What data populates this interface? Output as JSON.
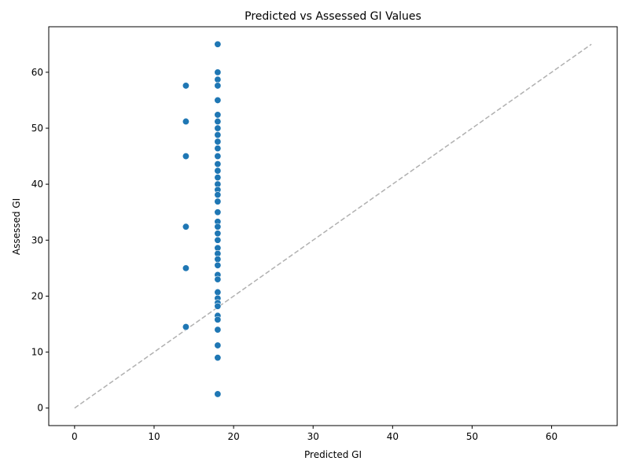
{
  "chart_data": {
    "type": "scatter",
    "title": "Predicted vs Assessed GI Values",
    "xlabel": "Predicted GI",
    "ylabel": "Assessed GI",
    "xlim": [
      -3.25,
      68.25
    ],
    "ylim": [
      -3.13,
      68.13
    ],
    "x_ticks": [
      0,
      10,
      20,
      30,
      40,
      50,
      60
    ],
    "y_ticks": [
      0,
      10,
      20,
      30,
      40,
      50,
      60
    ],
    "grid": false,
    "point_color": "#1f77b4",
    "reference_line": {
      "from": [
        0,
        0
      ],
      "to": [
        65,
        65
      ],
      "style": "dashed",
      "color": "#b0b0b0"
    },
    "points": [
      {
        "x": 18,
        "y": 65.0
      },
      {
        "x": 18,
        "y": 60.0
      },
      {
        "x": 18,
        "y": 58.7
      },
      {
        "x": 18,
        "y": 57.6
      },
      {
        "x": 18,
        "y": 55.0
      },
      {
        "x": 18,
        "y": 52.4
      },
      {
        "x": 18,
        "y": 51.2
      },
      {
        "x": 18,
        "y": 50.0
      },
      {
        "x": 18,
        "y": 48.8
      },
      {
        "x": 18,
        "y": 47.6
      },
      {
        "x": 18,
        "y": 46.4
      },
      {
        "x": 18,
        "y": 45.0
      },
      {
        "x": 18,
        "y": 43.6
      },
      {
        "x": 18,
        "y": 42.4
      },
      {
        "x": 18,
        "y": 41.2
      },
      {
        "x": 18,
        "y": 40.0
      },
      {
        "x": 18,
        "y": 39.0
      },
      {
        "x": 18,
        "y": 38.1
      },
      {
        "x": 18,
        "y": 36.9
      },
      {
        "x": 18,
        "y": 35.0
      },
      {
        "x": 18,
        "y": 33.3
      },
      {
        "x": 18,
        "y": 32.4
      },
      {
        "x": 18,
        "y": 31.2
      },
      {
        "x": 18,
        "y": 30.0
      },
      {
        "x": 18,
        "y": 28.6
      },
      {
        "x": 18,
        "y": 27.6
      },
      {
        "x": 18,
        "y": 26.6
      },
      {
        "x": 18,
        "y": 25.5
      },
      {
        "x": 18,
        "y": 23.8
      },
      {
        "x": 18,
        "y": 23.0
      },
      {
        "x": 18,
        "y": 20.7
      },
      {
        "x": 18,
        "y": 19.6
      },
      {
        "x": 18,
        "y": 18.8
      },
      {
        "x": 18,
        "y": 18.2
      },
      {
        "x": 18,
        "y": 16.5
      },
      {
        "x": 18,
        "y": 15.8
      },
      {
        "x": 18,
        "y": 14.0
      },
      {
        "x": 18,
        "y": 11.2
      },
      {
        "x": 18,
        "y": 9.0
      },
      {
        "x": 18,
        "y": 2.5
      },
      {
        "x": 14,
        "y": 57.6
      },
      {
        "x": 14,
        "y": 51.2
      },
      {
        "x": 14,
        "y": 45.0
      },
      {
        "x": 14,
        "y": 32.4
      },
      {
        "x": 14,
        "y": 25.0
      },
      {
        "x": 14,
        "y": 14.5
      }
    ]
  }
}
